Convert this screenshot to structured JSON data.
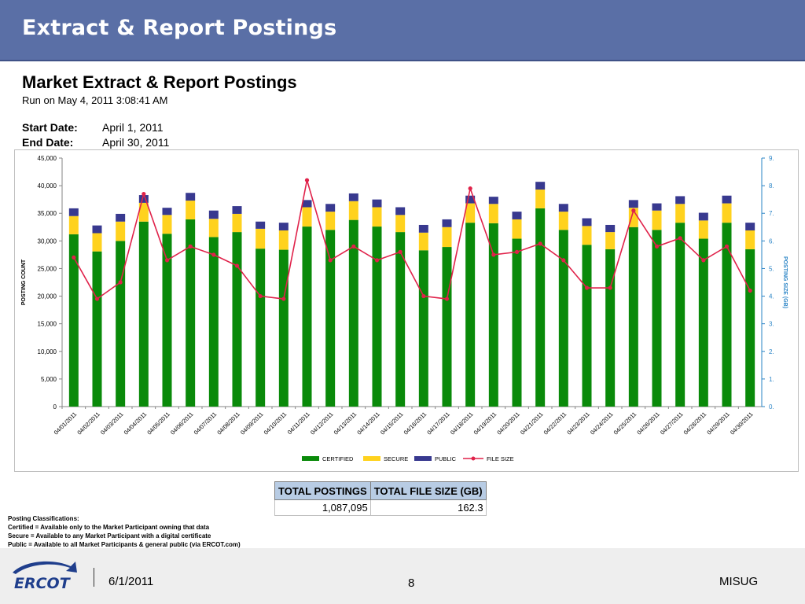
{
  "slide": {
    "title": "Extract & Report Postings"
  },
  "report": {
    "title": "Market Extract & Report Postings",
    "run_on": "Run on May 4, 2011  3:08:41 AM",
    "start_label": "Start Date:",
    "start_value": "April 1, 2011",
    "end_label": "End Date:",
    "end_value": "April  30, 2011"
  },
  "colors": {
    "certified": "#0a8a0a",
    "secure": "#ffd21e",
    "public": "#38398f",
    "file_size": "#e0224a",
    "title_band": "#5a6fa6",
    "axis_right": "#2a84c6"
  },
  "chart_data": {
    "type": "bar",
    "stacked": true,
    "categories": [
      "04/01/2011",
      "04/02/2011",
      "04/03/2011",
      "04/04/2011",
      "04/05/2011",
      "04/06/2011",
      "04/07/2011",
      "04/08/2011",
      "04/09/2011",
      "04/10/2011",
      "04/11/2011",
      "04/12/2011",
      "04/13/2011",
      "04/14/2011",
      "04/15/2011",
      "04/16/2011",
      "04/17/2011",
      "04/18/2011",
      "04/19/2011",
      "04/20/2011",
      "04/21/2011",
      "04/22/2011",
      "04/23/2011",
      "04/24/2011",
      "04/25/2011",
      "04/26/2011",
      "04/27/2011",
      "04/28/2011",
      "04/29/2011",
      "04/30/2011"
    ],
    "series": [
      {
        "name": "CERTIFIED",
        "type": "bar",
        "values": [
          31200,
          28100,
          30000,
          33500,
          31300,
          33900,
          30700,
          31600,
          28600,
          28400,
          32600,
          32000,
          33800,
          32600,
          31600,
          28300,
          28900,
          33300,
          33200,
          30400,
          35900,
          32000,
          29300,
          28500,
          32500,
          32000,
          33300,
          30400,
          33300,
          28500
        ]
      },
      {
        "name": "SECURE",
        "type": "bar",
        "values": [
          3300,
          3300,
          3500,
          3400,
          3400,
          3400,
          3300,
          3300,
          3600,
          3500,
          3500,
          3300,
          3400,
          3500,
          3100,
          3200,
          3600,
          3500,
          3500,
          3500,
          3400,
          3300,
          3400,
          3100,
          3500,
          3500,
          3400,
          3300,
          3500,
          3400
        ]
      },
      {
        "name": "PUBLIC",
        "type": "bar",
        "values": [
          1400,
          1400,
          1400,
          1400,
          1300,
          1400,
          1500,
          1400,
          1300,
          1400,
          1300,
          1400,
          1400,
          1400,
          1400,
          1400,
          1400,
          1400,
          1300,
          1400,
          1400,
          1400,
          1400,
          1300,
          1400,
          1300,
          1400,
          1400,
          1400,
          1400
        ]
      },
      {
        "name": "FILE SIZE",
        "type": "line",
        "axis": "right",
        "values": [
          5.4,
          3.9,
          4.5,
          7.7,
          5.3,
          5.8,
          5.5,
          5.1,
          4.0,
          3.9,
          8.2,
          5.3,
          5.8,
          5.3,
          5.6,
          4.0,
          3.9,
          7.9,
          5.5,
          5.6,
          5.9,
          5.3,
          4.3,
          4.3,
          7.1,
          5.8,
          6.1,
          5.3,
          5.8,
          4.2
        ]
      }
    ],
    "ylabel": "POSTING COUNT",
    "y2label": "POSTING SIZE (GB)",
    "ylim": [
      0,
      45000
    ],
    "y2lim": [
      0,
      9
    ],
    "yticks": [
      "0",
      "5,000",
      "10,000",
      "15,000",
      "20,000",
      "25,000",
      "30,000",
      "35,000",
      "40,000",
      "45,000"
    ],
    "y2ticks": [
      "0.",
      "1.",
      "2.",
      "3.",
      "4.",
      "5.",
      "6.",
      "7.",
      "8.",
      "9."
    ],
    "legend": [
      "CERTIFIED",
      "SECURE",
      "PUBLIC",
      "FILE SIZE"
    ],
    "legend_position": "bottom",
    "grid": false
  },
  "totals": {
    "headers": [
      "TOTAL POSTINGS",
      "TOTAL FILE SIZE (GB)"
    ],
    "values": [
      "1,087,095",
      "162.3"
    ]
  },
  "notes": {
    "heading": "Posting Classifications:",
    "certified": "Certified = Available only to the Market Participant owning that data",
    "secure": "Secure = Available to any Market Participant with a digital certificate",
    "public": "Public = Available to all Market Participants & general public (via ERCOT.com)"
  },
  "footer": {
    "logo_text": "ERCOT",
    "date": "6/1/2011",
    "page": "8",
    "org": "MISUG"
  }
}
